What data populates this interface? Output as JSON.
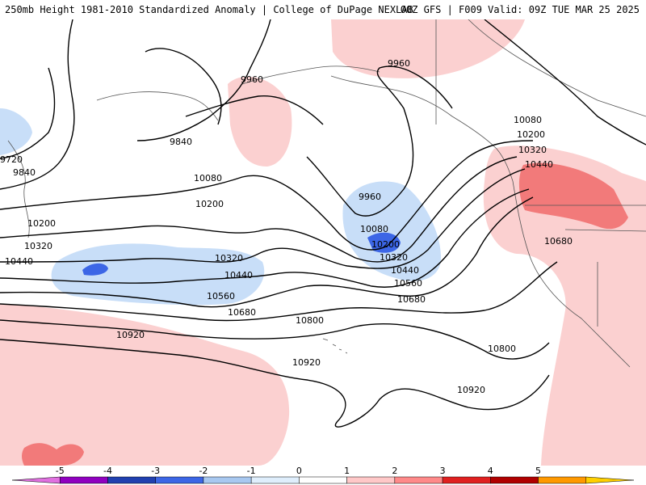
{
  "header": {
    "left": "250mb Height 1981-2010 Standardized Anomaly | College of DuPage NEXLAB",
    "right": "00Z GFS | F009 Valid: 09Z TUE MAR 25 2025"
  },
  "contours": {
    "labels": [
      "9960",
      "9840",
      "9720",
      "9840",
      "10080",
      "10200",
      "10320",
      "10440",
      "10200",
      "10320",
      "10440",
      "10560",
      "10680",
      "10800",
      "10920",
      "10920",
      "9960",
      "10080",
      "10200",
      "10320",
      "10440",
      "10560",
      "10680",
      "10800",
      "10920",
      "9960",
      "10080",
      "10200",
      "10320",
      "10440",
      "10680"
    ]
  },
  "colorbar": {
    "ticks": [
      "-5",
      "-4",
      "-3",
      "-2",
      "-1",
      "0",
      "1",
      "2",
      "3",
      "4",
      "5"
    ],
    "colors": [
      "#e070e0",
      "#9000c0",
      "#2040b0",
      "#3c66e6",
      "#a8c8f0",
      "#dfeefc",
      "#ffffff",
      "#ffc8c8",
      "#ff8a8a",
      "#e02020",
      "#b00000",
      "#ff9900",
      "#ffd000"
    ]
  },
  "anomaly_colors": {
    "neg1": "#c8def8",
    "neg2": "#3c66e6",
    "pos1": "#fbd0d0",
    "pos2": "#f27a7a"
  }
}
